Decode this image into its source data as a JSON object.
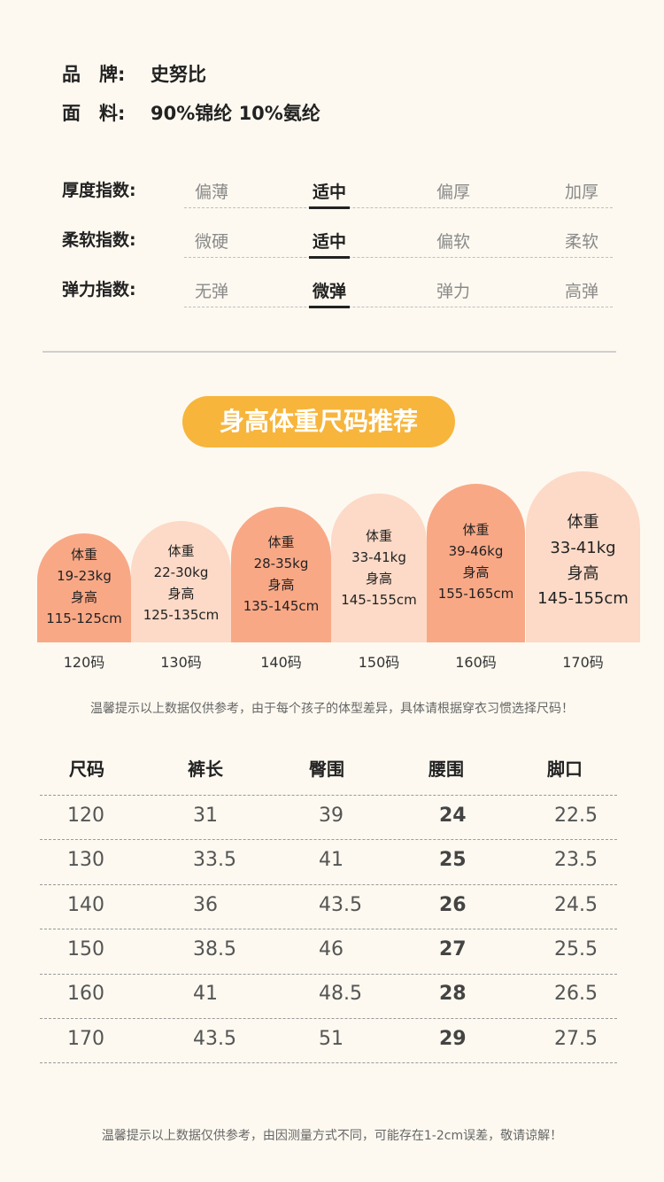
{
  "info": {
    "brand_label": "品　牌:",
    "brand_value": "史努比",
    "fabric_label": "面　料:",
    "fabric_value": "90%锦纶 10%氨纶"
  },
  "indices": [
    {
      "title": "厚度指数:",
      "options": [
        "偏薄",
        "适中",
        "偏厚",
        "加厚"
      ],
      "selected": "适中"
    },
    {
      "title": "柔软指数:",
      "options": [
        "微硬",
        "适中",
        "偏软",
        "柔软"
      ],
      "selected": "适中"
    },
    {
      "title": "弹力指数:",
      "options": [
        "无弹",
        "微弹",
        "弹力",
        "高弹"
      ],
      "selected": "微弹"
    }
  ],
  "recommend": {
    "heading": "身高体重尺码推荐",
    "sizes": [
      {
        "size": "120码",
        "weight_label": "体重",
        "weight": "19-23kg",
        "height_label": "身高",
        "height": "115-125cm"
      },
      {
        "size": "130码",
        "weight_label": "体重",
        "weight": "22-30kg",
        "height_label": "身高",
        "height": "125-135cm"
      },
      {
        "size": "140码",
        "weight_label": "体重",
        "weight": "28-35kg",
        "height_label": "身高",
        "height": "135-145cm"
      },
      {
        "size": "150码",
        "weight_label": "体重",
        "weight": "33-41kg",
        "height_label": "身高",
        "height": "145-155cm"
      },
      {
        "size": "160码",
        "weight_label": "体重",
        "weight": "39-46kg",
        "height_label": "身高",
        "height": "155-165cm"
      },
      {
        "size": "170码",
        "weight_label": "体重",
        "weight": "33-41kg",
        "height_label": "身高",
        "height": "145-155cm"
      }
    ],
    "note": "温馨提示以上数据仅供参考，由于每个孩子的体型差异，具体请根据穿衣习惯选择尺码！"
  },
  "size_table": {
    "headers": [
      "尺码",
      "裤长",
      "臀围",
      "腰围",
      "脚口"
    ],
    "rows": [
      [
        "120",
        "31",
        "39",
        "24",
        "22.5"
      ],
      [
        "130",
        "33.5",
        "41",
        "25",
        "23.5"
      ],
      [
        "140",
        "36",
        "43.5",
        "26",
        "24.5"
      ],
      [
        "150",
        "38.5",
        "46",
        "27",
        "25.5"
      ],
      [
        "160",
        "41",
        "48.5",
        "28",
        "26.5"
      ],
      [
        "170",
        "43.5",
        "51",
        "29",
        "27.5"
      ]
    ],
    "note": "温馨提示以上数据仅供参考，由因测量方式不同，可能存在1-2cm误差，敬请谅解！"
  }
}
